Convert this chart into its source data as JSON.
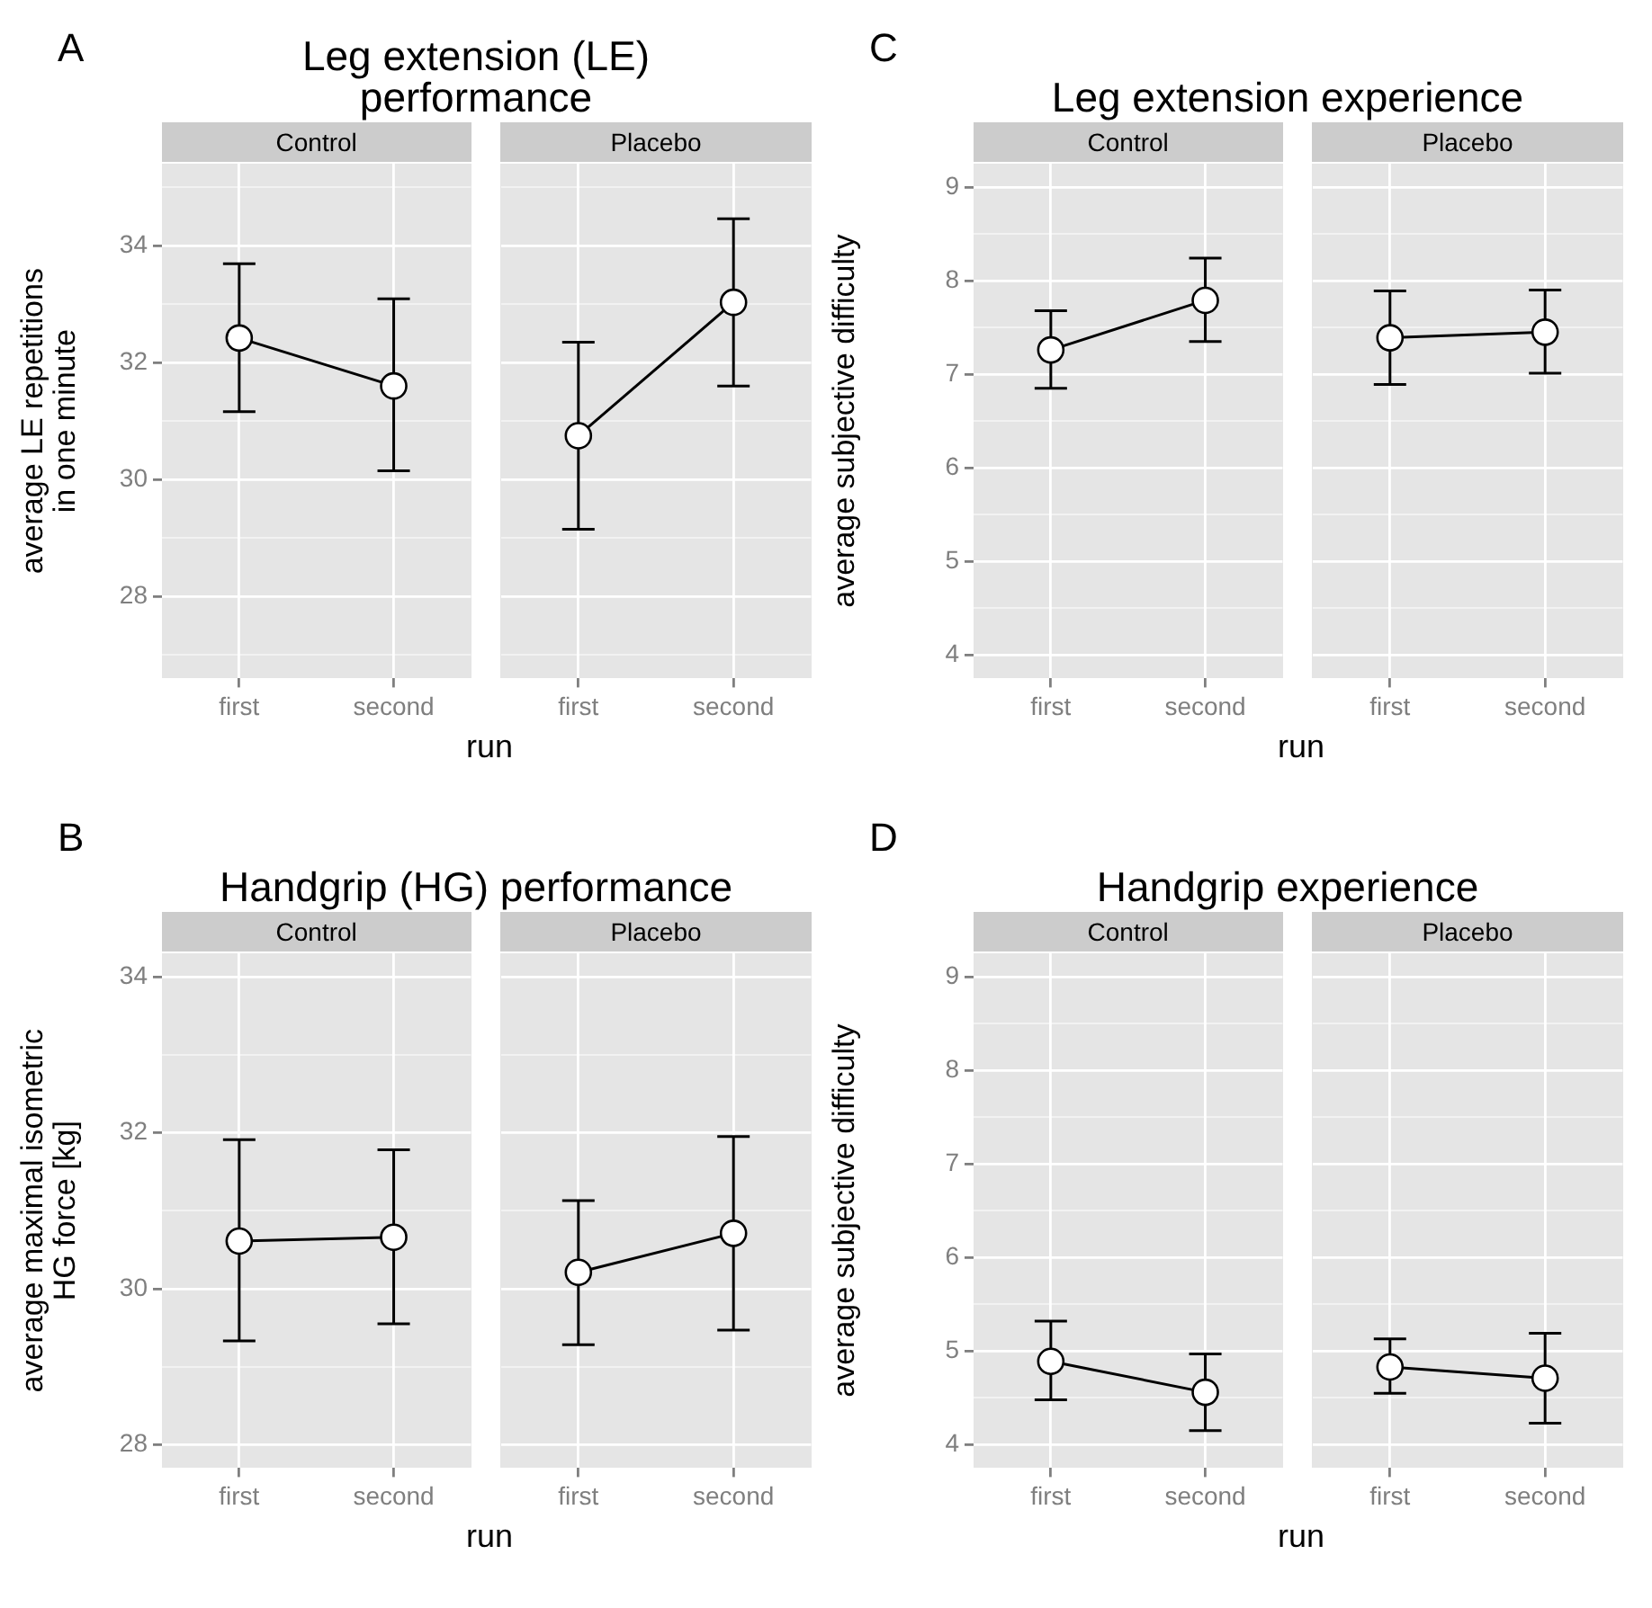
{
  "chart_data": [
    {
      "type": "line",
      "title": "Leg extension (LE)\nperformance",
      "subtitle": "Control",
      "xlabel": "run",
      "ylabel": "average LE repetitions\nin one minute",
      "annotations": [
        "A"
      ],
      "categories": [
        "first",
        "second"
      ],
      "values": [
        32.42,
        31.6
      ],
      "errors": [
        [
          31.16,
          33.69
        ],
        [
          30.15,
          33.09
        ]
      ],
      "color": "#000000",
      "legend": false,
      "ylim": [
        26.6,
        35.4
      ],
      "yticks": [
        {
          "value": 27,
          "label": null
        },
        28,
        {
          "value": 29,
          "label": null
        },
        30,
        {
          "value": 31,
          "label": null
        },
        32,
        {
          "value": 33,
          "label": null
        },
        34,
        {
          "value": 35,
          "label": null
        }
      ],
      "grid": true,
      "marker": "circle"
    },
    {
      "type": "line",
      "subtitle": "Placebo",
      "categories": [
        "first",
        "second"
      ],
      "values": [
        30.75,
        33.03
      ],
      "errors": [
        [
          29.15,
          32.35
        ],
        [
          31.6,
          34.46
        ]
      ],
      "color": "#000000",
      "legend": false,
      "ylim": [
        26.6,
        35.4
      ],
      "yticks": [
        {
          "value": 27,
          "label": null
        },
        28,
        {
          "value": 29,
          "label": null
        },
        30,
        {
          "value": 31,
          "label": null
        },
        32,
        {
          "value": 33,
          "label": null
        },
        34,
        {
          "value": 35,
          "label": null
        }
      ],
      "grid": true,
      "marker": "circle",
      "tick_labels": "x"
    },
    {
      "type": "line",
      "title": "Leg extension experience",
      "subtitle": "Control",
      "xlabel": "run",
      "ylabel": "average subjective difficulty",
      "annotations": [
        "C"
      ],
      "categories": [
        "first",
        "second"
      ],
      "values": [
        7.26,
        7.79
      ],
      "errors": [
        [
          6.85,
          7.68
        ],
        [
          7.35,
          8.24
        ]
      ],
      "color": "#000000",
      "legend": false,
      "ylim": [
        3.75,
        9.25
      ],
      "yticks": [
        4,
        {
          "value": 4.5,
          "label": null
        },
        5,
        {
          "value": 5.5,
          "label": null
        },
        6,
        {
          "value": 6.5,
          "label": null
        },
        7,
        {
          "value": 7.5,
          "label": null
        },
        8,
        {
          "value": 8.5,
          "label": null
        },
        9
      ],
      "grid": true,
      "marker": "circle"
    },
    {
      "type": "line",
      "subtitle": "Placebo",
      "categories": [
        "first",
        "second"
      ],
      "values": [
        7.39,
        7.45
      ],
      "errors": [
        [
          6.89,
          7.89
        ],
        [
          7.01,
          7.9
        ]
      ],
      "color": "#000000",
      "legend": false,
      "ylim": [
        3.75,
        9.25
      ],
      "yticks": [
        4,
        {
          "value": 4.5,
          "label": null
        },
        5,
        {
          "value": 5.5,
          "label": null
        },
        6,
        {
          "value": 6.5,
          "label": null
        },
        7,
        {
          "value": 7.5,
          "label": null
        },
        8,
        {
          "value": 8.5,
          "label": null
        },
        9
      ],
      "grid": true,
      "marker": "circle",
      "tick_labels": "x"
    },
    {
      "type": "line",
      "title": "Handgrip (HG) performance",
      "subtitle": "Control",
      "xlabel": "run",
      "ylabel": "average maximal isometric\nHG force [kg]",
      "annotations": [
        "B"
      ],
      "categories": [
        "first",
        "second"
      ],
      "values": [
        30.61,
        30.66
      ],
      "errors": [
        [
          29.33,
          31.91
        ],
        [
          29.55,
          31.78
        ]
      ],
      "color": "#000000",
      "legend": false,
      "ylim": [
        27.7,
        34.3
      ],
      "yticks": [
        28,
        {
          "value": 29,
          "label": null
        },
        30,
        {
          "value": 31,
          "label": null
        },
        32,
        {
          "value": 33,
          "label": null
        },
        34
      ],
      "grid": true,
      "marker": "circle"
    },
    {
      "type": "line",
      "subtitle": "Placebo",
      "categories": [
        "first",
        "second"
      ],
      "values": [
        30.21,
        30.71
      ],
      "errors": [
        [
          29.28,
          31.13
        ],
        [
          29.47,
          31.95
        ]
      ],
      "color": "#000000",
      "legend": false,
      "ylim": [
        27.7,
        34.3
      ],
      "yticks": [
        28,
        {
          "value": 29,
          "label": null
        },
        30,
        {
          "value": 31,
          "label": null
        },
        32,
        {
          "value": 33,
          "label": null
        },
        34
      ],
      "grid": true,
      "marker": "circle",
      "tick_labels": "x"
    },
    {
      "type": "line",
      "title": "Handgrip experience",
      "subtitle": "Control",
      "xlabel": "run",
      "ylabel": "average subjective difficulty",
      "annotations": [
        "D"
      ],
      "categories": [
        "first",
        "second"
      ],
      "values": [
        4.89,
        4.56
      ],
      "errors": [
        [
          4.48,
          5.32
        ],
        [
          4.15,
          4.97
        ]
      ],
      "color": "#000000",
      "legend": false,
      "ylim": [
        3.75,
        9.25
      ],
      "yticks": [
        4,
        {
          "value": 4.5,
          "label": null
        },
        5,
        {
          "value": 5.5,
          "label": null
        },
        6,
        {
          "value": 6.5,
          "label": null
        },
        7,
        {
          "value": 7.5,
          "label": null
        },
        8,
        {
          "value": 8.5,
          "label": null
        },
        9
      ],
      "grid": true,
      "marker": "circle"
    },
    {
      "type": "line",
      "subtitle": "Placebo",
      "categories": [
        "first",
        "second"
      ],
      "values": [
        4.83,
        4.71
      ],
      "errors": [
        [
          4.55,
          5.13
        ],
        [
          4.23,
          5.19
        ]
      ],
      "color": "#000000",
      "legend": false,
      "ylim": [
        3.75,
        9.25
      ],
      "yticks": [
        4,
        {
          "value": 4.5,
          "label": null
        },
        5,
        {
          "value": 5.5,
          "label": null
        },
        6,
        {
          "value": 6.5,
          "label": null
        },
        7,
        {
          "value": 7.5,
          "label": null
        },
        8,
        {
          "value": 8.5,
          "label": null
        },
        9
      ],
      "grid": true,
      "marker": "circle",
      "tick_labels": "x"
    }
  ]
}
